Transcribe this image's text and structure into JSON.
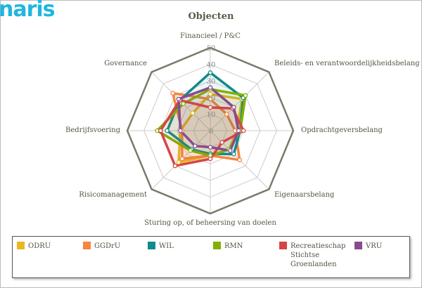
{
  "logo_text": "naris",
  "chart_data": {
    "type": "radar",
    "title": "Objecten",
    "axes": [
      "Financieel / P&C",
      "Beleids- en verantwoordelijkheidsbelang",
      "Opdrachtgeversbelang",
      "Eigenaarsbelang",
      "Sturing op, of beheersing van doelen",
      "Risicomanagement",
      "Bedrijfsvoering",
      "Governance"
    ],
    "range": [
      0,
      50
    ],
    "ticks": [
      "0",
      "10",
      "20",
      "30",
      "40",
      "50"
    ],
    "legend_position": "bottom",
    "series": [
      {
        "name": "ODRU",
        "color": "#e8b820",
        "values": [
          22,
          27,
          16,
          16,
          15,
          27,
          18,
          15
        ]
      },
      {
        "name": "GGDrU",
        "color": "#f5853f",
        "values": [
          19,
          14,
          15,
          25,
          15,
          24,
          17,
          32
        ]
      },
      {
        "name": "WIL",
        "color": "#0e8b8b",
        "values": [
          35,
          28,
          18,
          20,
          14,
          16,
          26,
          26
        ]
      },
      {
        "name": "RMN",
        "color": "#82b000",
        "values": [
          25,
          30,
          18,
          16,
          15,
          17,
          32,
          23
        ]
      },
      {
        "name": "Recreatieschap Stichtse Groenlanden",
        "color": "#d64545",
        "values": [
          14,
          19,
          20,
          10,
          17,
          30,
          30,
          26
        ]
      },
      {
        "name": "VRU",
        "color": "#8a4a8e",
        "values": [
          26,
          20,
          17,
          17,
          10,
          13,
          18,
          27
        ]
      }
    ]
  }
}
